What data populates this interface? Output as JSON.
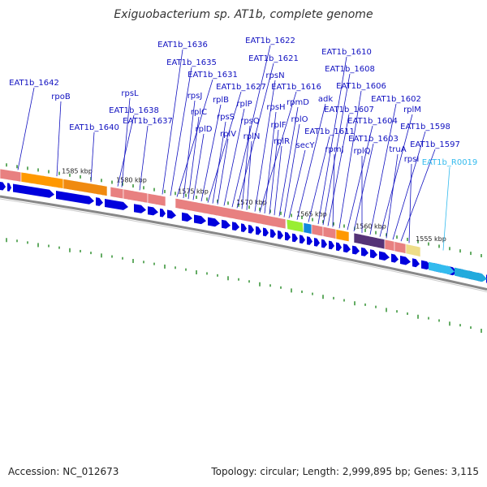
{
  "title": "Exiguobacterium sp. AT1b, complete genome",
  "footer": {
    "accession": "Accession: NC_012673",
    "summary": "Topology: circular; Length: 2,999,895 bp; Genes: 3,115"
  },
  "colors": {
    "gene_label": "#1010c0",
    "rna_label": "#33bbee",
    "cds_arrow": "#0000dd",
    "rna_arrow": "#33bbee",
    "tick_mark": "#228822",
    "ribosomal_block": "#e88080",
    "orange_block": "#ff9900",
    "backbone": "#888888"
  },
  "scale_ticks": [
    "1585 kbp",
    "1580 kbp",
    "1575 kbp",
    "1570 kbp",
    "1565 kbp",
    "1560 kbp",
    "1555 kbp"
  ],
  "gene_labels": [
    {
      "text": "EAT1b_1642",
      "kind": "cds"
    },
    {
      "text": "rpoB",
      "kind": "cds"
    },
    {
      "text": "EAT1b_1640",
      "kind": "cds"
    },
    {
      "text": "rpsL",
      "kind": "cds"
    },
    {
      "text": "EAT1b_1638",
      "kind": "cds"
    },
    {
      "text": "EAT1b_1637",
      "kind": "cds"
    },
    {
      "text": "EAT1b_1636",
      "kind": "cds"
    },
    {
      "text": "EAT1b_1635",
      "kind": "cds"
    },
    {
      "text": "EAT1b_1631",
      "kind": "cds"
    },
    {
      "text": "rpsJ",
      "kind": "cds"
    },
    {
      "text": "rplC",
      "kind": "cds"
    },
    {
      "text": "rplD",
      "kind": "cds"
    },
    {
      "text": "rplB",
      "kind": "cds"
    },
    {
      "text": "EAT1b_1627",
      "kind": "cds"
    },
    {
      "text": "rpsS",
      "kind": "cds"
    },
    {
      "text": "rplV",
      "kind": "cds"
    },
    {
      "text": "rplP",
      "kind": "cds"
    },
    {
      "text": "EAT1b_1622",
      "kind": "cds"
    },
    {
      "text": "EAT1b_1621",
      "kind": "cds"
    },
    {
      "text": "rpsQ",
      "kind": "cds"
    },
    {
      "text": "rplN",
      "kind": "cds"
    },
    {
      "text": "rpsN",
      "kind": "cds"
    },
    {
      "text": "EAT1b_1616",
      "kind": "cds"
    },
    {
      "text": "rpsH",
      "kind": "cds"
    },
    {
      "text": "rplF",
      "kind": "cds"
    },
    {
      "text": "rplR",
      "kind": "cds"
    },
    {
      "text": "rpmD",
      "kind": "cds"
    },
    {
      "text": "rplO",
      "kind": "cds"
    },
    {
      "text": "secY",
      "kind": "cds"
    },
    {
      "text": "adk",
      "kind": "cds"
    },
    {
      "text": "EAT1b_1611",
      "kind": "cds"
    },
    {
      "text": "EAT1b_1610",
      "kind": "cds"
    },
    {
      "text": "EAT1b_1608",
      "kind": "cds"
    },
    {
      "text": "EAT1b_1607",
      "kind": "cds"
    },
    {
      "text": "rpmJ",
      "kind": "cds"
    },
    {
      "text": "EAT1b_1606",
      "kind": "cds"
    },
    {
      "text": "EAT1b_1604",
      "kind": "cds"
    },
    {
      "text": "EAT1b_1603",
      "kind": "cds"
    },
    {
      "text": "rplQ",
      "kind": "cds"
    },
    {
      "text": "EAT1b_1602",
      "kind": "cds"
    },
    {
      "text": "rplM",
      "kind": "cds"
    },
    {
      "text": "truA",
      "kind": "cds"
    },
    {
      "text": "EAT1b_1598",
      "kind": "cds"
    },
    {
      "text": "EAT1b_1597",
      "kind": "cds"
    },
    {
      "text": "rpsI",
      "kind": "cds"
    },
    {
      "text": "EAT1b_R0019",
      "kind": "rna"
    }
  ]
}
